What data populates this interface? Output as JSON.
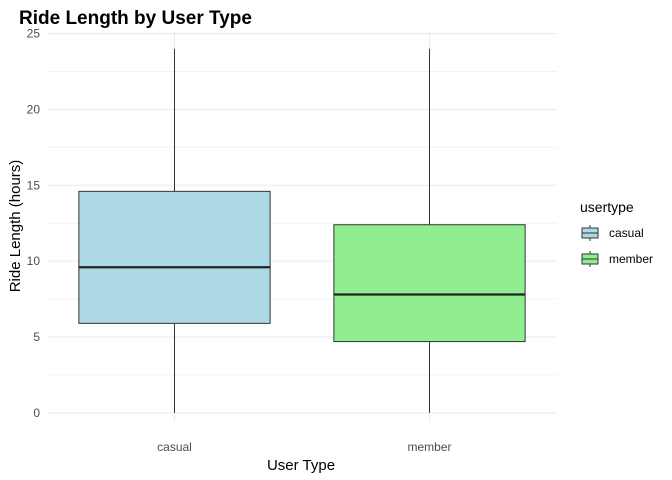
{
  "chart_data": {
    "type": "boxplot",
    "title": "Ride Length by User Type",
    "xlabel": "User Type",
    "ylabel": "Ride Length (hours)",
    "categories": [
      "casual",
      "member"
    ],
    "series": [
      {
        "name": "casual",
        "color": "#add8e6",
        "min": 0,
        "q1": 5.9,
        "median": 9.6,
        "q3": 14.6,
        "max": 24
      },
      {
        "name": "member",
        "color": "#90ee90",
        "min": 0,
        "q1": 4.7,
        "median": 7.8,
        "q3": 12.4,
        "max": 24
      }
    ],
    "ylim": [
      -0.6,
      25.1
    ],
    "yticks": [
      0,
      5,
      10,
      15,
      20,
      25
    ],
    "grid": true,
    "legend": {
      "title": "usertype",
      "entries": [
        "casual",
        "member"
      ],
      "placement": "right"
    }
  }
}
